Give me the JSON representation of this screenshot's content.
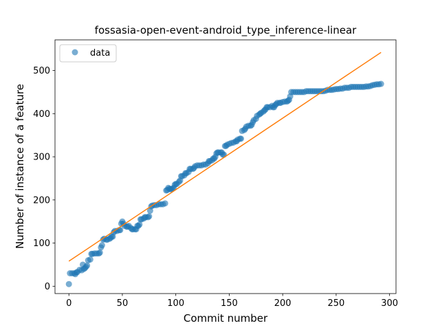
{
  "chart_data": {
    "type": "scatter",
    "title": "fossasia-open-event-android_type_inference-linear",
    "xlabel": "Commit number",
    "ylabel": "Number of instance of a feature",
    "xlim": [
      -13,
      306
    ],
    "ylim": [
      -17,
      571
    ],
    "xticks": [
      0,
      50,
      100,
      150,
      200,
      250,
      300
    ],
    "yticks": [
      0,
      100,
      200,
      300,
      400,
      500
    ],
    "legend_position": "upper-left",
    "colors": {
      "data": "#1f77b4",
      "fit": "#ff7f0e"
    },
    "series": [
      {
        "name": "data",
        "kind": "points",
        "points": [
          [
            0,
            5
          ],
          [
            1,
            30
          ],
          [
            3,
            30
          ],
          [
            5,
            30
          ],
          [
            6,
            28
          ],
          [
            7,
            32
          ],
          [
            8,
            33
          ],
          [
            10,
            38
          ],
          [
            12,
            37
          ],
          [
            13,
            50
          ],
          [
            14,
            40
          ],
          [
            15,
            42
          ],
          [
            16,
            45
          ],
          [
            17,
            48
          ],
          [
            18,
            60
          ],
          [
            20,
            62
          ],
          [
            21,
            75
          ],
          [
            22,
            75
          ],
          [
            24,
            76
          ],
          [
            26,
            76
          ],
          [
            28,
            76
          ],
          [
            29,
            78
          ],
          [
            30,
            90
          ],
          [
            31,
            95
          ],
          [
            32,
            108
          ],
          [
            33,
            110
          ],
          [
            35,
            108
          ],
          [
            36,
            108
          ],
          [
            38,
            110
          ],
          [
            39,
            112
          ],
          [
            40,
            115
          ],
          [
            41,
            115
          ],
          [
            42,
            125
          ],
          [
            43,
            128
          ],
          [
            45,
            128
          ],
          [
            47,
            130
          ],
          [
            48,
            130
          ],
          [
            49,
            145
          ],
          [
            50,
            150
          ],
          [
            51,
            145
          ],
          [
            52,
            140
          ],
          [
            54,
            138
          ],
          [
            55,
            138
          ],
          [
            56,
            140
          ],
          [
            58,
            135
          ],
          [
            59,
            132
          ],
          [
            60,
            132
          ],
          [
            62,
            132
          ],
          [
            63,
            132
          ],
          [
            64,
            140
          ],
          [
            65,
            140
          ],
          [
            66,
            143
          ],
          [
            67,
            155
          ],
          [
            68,
            155
          ],
          [
            70,
            157
          ],
          [
            71,
            160
          ],
          [
            72,
            160
          ],
          [
            74,
            160
          ],
          [
            75,
            162
          ],
          [
            76,
            175
          ],
          [
            77,
            185
          ],
          [
            78,
            187
          ],
          [
            80,
            188
          ],
          [
            82,
            188
          ],
          [
            84,
            190
          ],
          [
            86,
            190
          ],
          [
            88,
            190
          ],
          [
            90,
            192
          ],
          [
            91,
            222
          ],
          [
            92,
            223
          ],
          [
            93,
            228
          ],
          [
            94,
            226
          ],
          [
            95,
            225
          ],
          [
            96,
            225
          ],
          [
            97,
            226
          ],
          [
            98,
            228
          ],
          [
            99,
            235
          ],
          [
            100,
            237
          ],
          [
            101,
            237
          ],
          [
            103,
            242
          ],
          [
            104,
            245
          ],
          [
            105,
            255
          ],
          [
            106,
            255
          ],
          [
            108,
            257
          ],
          [
            109,
            262
          ],
          [
            110,
            262
          ],
          [
            112,
            265
          ],
          [
            113,
            272
          ],
          [
            114,
            272
          ],
          [
            116,
            272
          ],
          [
            117,
            274
          ],
          [
            118,
            278
          ],
          [
            120,
            280
          ],
          [
            122,
            280
          ],
          [
            124,
            280
          ],
          [
            126,
            282
          ],
          [
            128,
            282
          ],
          [
            130,
            285
          ],
          [
            131,
            290
          ],
          [
            132,
            290
          ],
          [
            134,
            292
          ],
          [
            135,
            296
          ],
          [
            136,
            296
          ],
          [
            137,
            300
          ],
          [
            138,
            308
          ],
          [
            139,
            310
          ],
          [
            140,
            310
          ],
          [
            142,
            310
          ],
          [
            143,
            310
          ],
          [
            144,
            305
          ],
          [
            145,
            305
          ],
          [
            146,
            325
          ],
          [
            147,
            325
          ],
          [
            148,
            328
          ],
          [
            150,
            330
          ],
          [
            152,
            332
          ],
          [
            154,
            333
          ],
          [
            156,
            336
          ],
          [
            157,
            336
          ],
          [
            158,
            340
          ],
          [
            160,
            342
          ],
          [
            161,
            342
          ],
          [
            162,
            360
          ],
          [
            164,
            362
          ],
          [
            165,
            365
          ],
          [
            166,
            370
          ],
          [
            168,
            372
          ],
          [
            170,
            372
          ],
          [
            171,
            374
          ],
          [
            172,
            380
          ],
          [
            173,
            385
          ],
          [
            175,
            388
          ],
          [
            176,
            395
          ],
          [
            178,
            398
          ],
          [
            179,
            400
          ],
          [
            180,
            402
          ],
          [
            182,
            405
          ],
          [
            183,
            408
          ],
          [
            184,
            410
          ],
          [
            185,
            415
          ],
          [
            186,
            415
          ],
          [
            188,
            415
          ],
          [
            190,
            418
          ],
          [
            191,
            415
          ],
          [
            192,
            415
          ],
          [
            193,
            420
          ],
          [
            194,
            422
          ],
          [
            195,
            425
          ],
          [
            197,
            425
          ],
          [
            198,
            425
          ],
          [
            200,
            427
          ],
          [
            202,
            428
          ],
          [
            204,
            428
          ],
          [
            205,
            430
          ],
          [
            206,
            432
          ],
          [
            207,
            440
          ],
          [
            208,
            450
          ],
          [
            210,
            450
          ],
          [
            212,
            450
          ],
          [
            214,
            450
          ],
          [
            216,
            450
          ],
          [
            218,
            450
          ],
          [
            220,
            450
          ],
          [
            222,
            452
          ],
          [
            224,
            452
          ],
          [
            226,
            452
          ],
          [
            228,
            452
          ],
          [
            230,
            452
          ],
          [
            232,
            452
          ],
          [
            234,
            452
          ],
          [
            236,
            452
          ],
          [
            238,
            452
          ],
          [
            240,
            453
          ],
          [
            242,
            455
          ],
          [
            244,
            455
          ],
          [
            246,
            455
          ],
          [
            248,
            456
          ],
          [
            250,
            457
          ],
          [
            252,
            457
          ],
          [
            254,
            458
          ],
          [
            256,
            458
          ],
          [
            258,
            460
          ],
          [
            260,
            460
          ],
          [
            262,
            460
          ],
          [
            264,
            462
          ],
          [
            266,
            462
          ],
          [
            268,
            462
          ],
          [
            270,
            462
          ],
          [
            272,
            462
          ],
          [
            274,
            462
          ],
          [
            276,
            462
          ],
          [
            278,
            463
          ],
          [
            280,
            463
          ],
          [
            282,
            464
          ],
          [
            284,
            466
          ],
          [
            286,
            467
          ],
          [
            288,
            468
          ],
          [
            290,
            468
          ],
          [
            292,
            469
          ]
        ]
      },
      {
        "kind": "line",
        "points": [
          [
            0,
            58
          ],
          [
            292,
            542
          ]
        ]
      }
    ]
  }
}
